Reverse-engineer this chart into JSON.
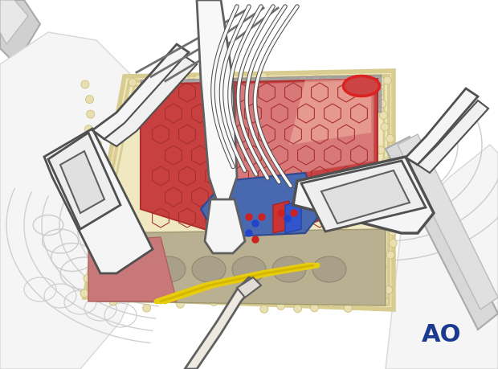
{
  "bg_color": "#ffffff",
  "ao_text": "AO",
  "ao_color": "#1a3a8f",
  "figure_width": 6.2,
  "figure_height": 4.59,
  "dpi": 100,
  "wound_cream": "#f0e8c0",
  "wound_cream_border": "#e0d090",
  "muscle_red": "#c84040",
  "muscle_light_red": "#d87070",
  "muscle_pink": "#e8a090",
  "muscle_dark": "#a03030",
  "blue_vessel": "#4060b0",
  "bone_gray": "#b0aa98",
  "yellow_nerve": "#e8cc20",
  "instrument_white": "#f5f5f5",
  "instrument_outline": "#505050",
  "body_gray": "#e0e0e0",
  "body_gray_dark": "#c8c8c8"
}
